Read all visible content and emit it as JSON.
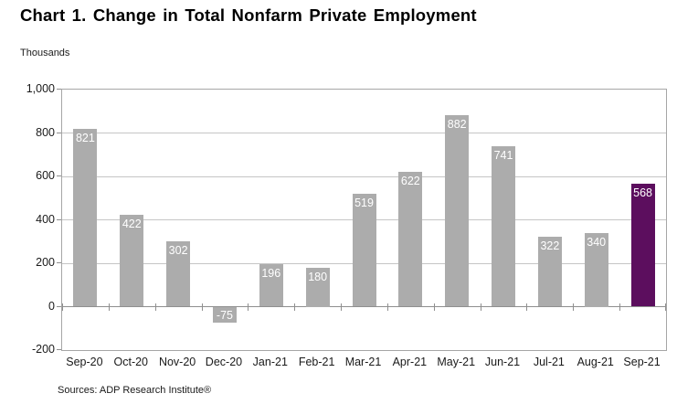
{
  "page": {
    "background": "#ffffff"
  },
  "chart_data": {
    "type": "bar",
    "title": "Chart 1. Change in Total Nonfarm Private Employment",
    "ylabel": "Thousands",
    "xlabel": "",
    "source": "Sources: ADP Research Institute®",
    "categories": [
      "Sep-20",
      "Oct-20",
      "Nov-20",
      "Dec-20",
      "Jan-21",
      "Feb-21",
      "Mar-21",
      "Apr-21",
      "May-21",
      "Jun-21",
      "Jul-21",
      "Aug-21",
      "Sep-21"
    ],
    "values": [
      821,
      422,
      302,
      -75,
      196,
      180,
      519,
      622,
      882,
      741,
      322,
      340,
      568
    ],
    "value_labels": [
      "821",
      "422",
      "302",
      "-75",
      "196",
      "180",
      "519",
      "622",
      "882",
      "741",
      "322",
      "340",
      "568"
    ],
    "ylim": [
      -200,
      1000
    ],
    "ytick_step": 200,
    "ytick_labels": [
      "1,000",
      "800",
      "600",
      "400",
      "200",
      "0",
      "-200"
    ],
    "ytick_values": [
      1000,
      800,
      600,
      400,
      200,
      0,
      -200
    ],
    "grid": true,
    "legend": "none",
    "bar_color": "#ACACAC",
    "highlight_color": "#5C0E5E",
    "highlight_index": 12,
    "value_label_color": "#FFFFFF",
    "gridline_color": "#C6C6C6",
    "axis_color": "#8F8F8F",
    "plot_border_color": "#A6A6A6"
  }
}
